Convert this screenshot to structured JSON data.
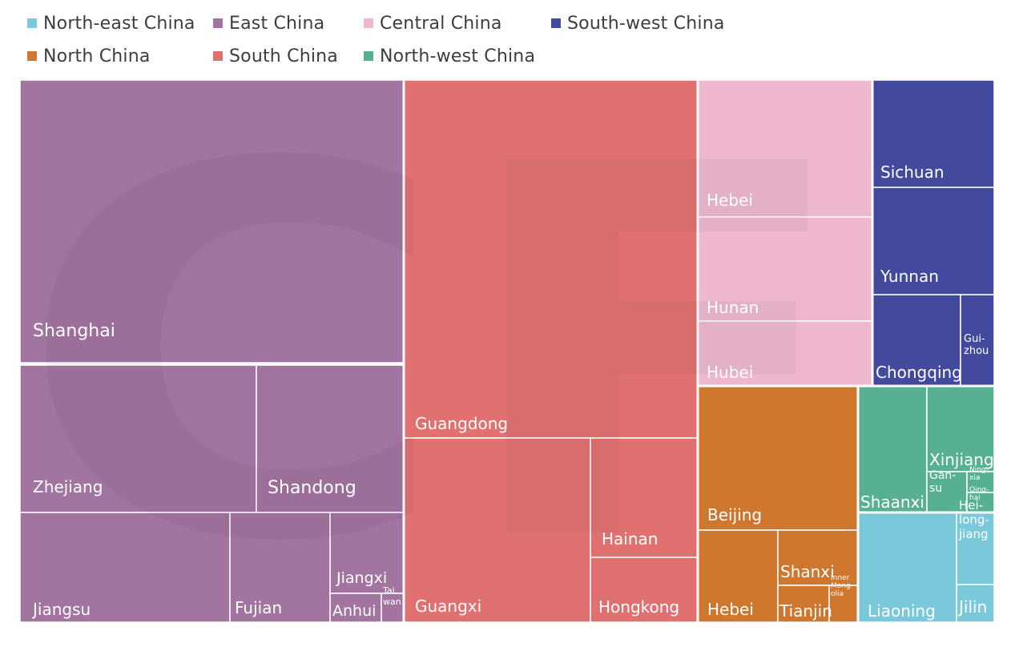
{
  "chart_data": {
    "type": "treemap",
    "title": "",
    "legend": {
      "placement": "top-left",
      "items": [
        {
          "region": "North-east China",
          "color": "#7ac9da"
        },
        {
          "region": "East China",
          "color": "#a275a0"
        },
        {
          "region": "Central China",
          "color": "#efb8d0"
        },
        {
          "region": "South-west China",
          "color": "#434a9d"
        },
        {
          "region": "North China",
          "color": "#cf772f"
        },
        {
          "region": "South China",
          "color": "#e07170"
        },
        {
          "region": "North-west China",
          "color": "#58b092"
        }
      ]
    },
    "watermark": "CF",
    "regions": [
      {
        "name": "East China",
        "color": "#a275a0",
        "provinces": [
          {
            "name": "Shanghai",
            "value": 1701
          },
          {
            "name": "Zhejiang",
            "value": 535
          },
          {
            "name": "Shandong",
            "value": 274
          },
          {
            "name": "Jiangsu",
            "value": 345
          },
          {
            "name": "Fujian",
            "value": 165
          },
          {
            "name": "Jiangxi",
            "value": 78
          },
          {
            "name": "Anhui",
            "value": 41
          },
          {
            "name": "Tai\nwan",
            "value": 19
          }
        ]
      },
      {
        "name": "South China",
        "color": "#e07170",
        "provinces": [
          {
            "name": "Guangdong",
            "value": 1560
          },
          {
            "name": "Guangxi",
            "value": 533
          },
          {
            "name": "Hainan",
            "value": 199
          },
          {
            "name": "Hongkong",
            "value": 111
          }
        ]
      },
      {
        "name": "Central China",
        "color": "#efb8d0",
        "provinces": [
          {
            "name": "Hebei",
            "value": 371
          },
          {
            "name": "Hunan",
            "value": 284
          },
          {
            "name": "Hubei",
            "value": 176
          }
        ]
      },
      {
        "name": "South-west China",
        "color": "#434a9d",
        "provinces": [
          {
            "name": "Sichuan",
            "value": 209
          },
          {
            "name": "Yunnan",
            "value": 209
          },
          {
            "name": "Chongqing",
            "value": 156
          },
          {
            "name": "Gui-\nzhou",
            "value": 38
          }
        ]
      },
      {
        "name": "North China",
        "color": "#cf772f",
        "provinces": [
          {
            "name": "Beijing",
            "value": 359
          },
          {
            "name": "Hebei",
            "value": 193
          },
          {
            "name": "Shanxi",
            "value": 81
          },
          {
            "name": "Tianjin",
            "value": 60
          },
          {
            "name": "Inner\nMong-\nolia",
            "value": 28
          }
        ]
      },
      {
        "name": "North-west China",
        "color": "#58b092",
        "provinces": [
          {
            "name": "Shaanxi",
            "value": 137
          },
          {
            "name": "Xinjiang",
            "value": 77
          },
          {
            "name": "Gan-\nsu",
            "value": 33
          },
          {
            "name": "Ning-\nxia",
            "value": 16
          },
          {
            "name": "Qing-\nhai",
            "value": 16
          }
        ]
      },
      {
        "name": "North-east China",
        "color": "#7ac9da",
        "provinces": [
          {
            "name": "Liaoning",
            "value": 180
          },
          {
            "name": "Hei-\nlong-\njiang",
            "value": 68
          },
          {
            "name": "Jilin",
            "value": 33
          }
        ]
      }
    ]
  }
}
